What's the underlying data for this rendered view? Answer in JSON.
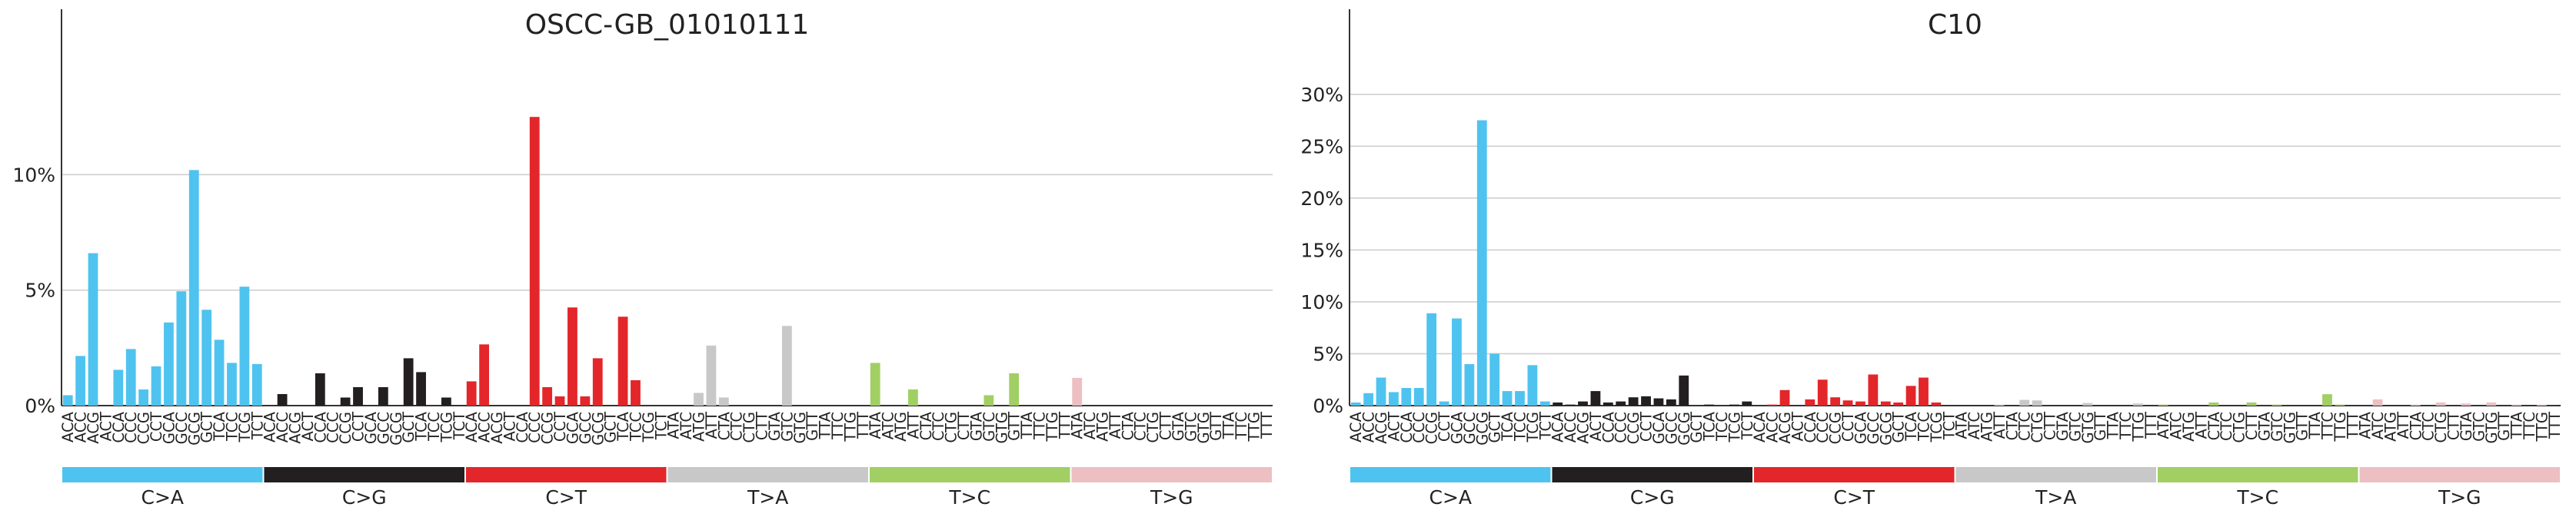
{
  "chart_data": [
    {
      "type": "bar",
      "title": "OSCC-GB_01010111",
      "ylim": [
        0,
        15.5
      ],
      "yticks": [
        0,
        5,
        10
      ],
      "ytick_labels": [
        "0%",
        "5%",
        "10%"
      ],
      "grid": true,
      "groups": [
        {
          "name": "C>A",
          "color": "#4fc3ef",
          "contexts": [
            "ACA",
            "ACC",
            "ACG",
            "ACT",
            "CCA",
            "CCC",
            "CCG",
            "CCT",
            "GCA",
            "GCC",
            "GCG",
            "GCT",
            "TCA",
            "TCC",
            "TCG",
            "TCT"
          ],
          "values": [
            0.45,
            2.15,
            6.6,
            0.0,
            1.55,
            2.45,
            0.7,
            1.7,
            3.6,
            4.95,
            10.2,
            4.15,
            2.85,
            1.85,
            5.15,
            1.8
          ]
        },
        {
          "name": "C>G",
          "color": "#231f20",
          "contexts": [
            "ACA",
            "ACC",
            "ACG",
            "ACT",
            "CCA",
            "CCC",
            "CCG",
            "CCT",
            "GCA",
            "GCC",
            "GCG",
            "GCT",
            "TCA",
            "TCC",
            "TCG",
            "TCT"
          ],
          "values": [
            0.0,
            0.5,
            0.0,
            0.0,
            1.4,
            0.0,
            0.35,
            0.8,
            0.0,
            0.8,
            0.0,
            2.05,
            1.45,
            0.0,
            0.35,
            0.0
          ]
        },
        {
          "name": "C>T",
          "color": "#e3262a",
          "contexts": [
            "ACA",
            "ACC",
            "ACG",
            "ACT",
            "CCA",
            "CCC",
            "CCG",
            "CCT",
            "GCA",
            "GCC",
            "GCG",
            "GCT",
            "TCA",
            "TCC",
            "TCG",
            "TCT"
          ],
          "values": [
            1.05,
            2.65,
            0.0,
            0.0,
            0.0,
            12.5,
            0.8,
            0.4,
            4.25,
            0.4,
            2.05,
            0.0,
            3.85,
            1.1,
            0.0,
            0.0
          ]
        },
        {
          "name": "T>A",
          "color": "#c8c8c8",
          "contexts": [
            "ATA",
            "ATC",
            "ATG",
            "ATT",
            "CTA",
            "CTC",
            "CTG",
            "CTT",
            "GTA",
            "GTC",
            "GTG",
            "GTT",
            "TTA",
            "TTC",
            "TTG",
            "TTT"
          ],
          "values": [
            0.0,
            0.0,
            0.55,
            2.6,
            0.35,
            0.0,
            0.0,
            0.0,
            0.0,
            3.45,
            0.0,
            0.0,
            0.0,
            0.0,
            0.0,
            0.0
          ]
        },
        {
          "name": "T>C",
          "color": "#a1cf64",
          "contexts": [
            "ATA",
            "ATC",
            "ATG",
            "ATT",
            "CTA",
            "CTC",
            "CTG",
            "CTT",
            "GTA",
            "GTC",
            "GTG",
            "GTT",
            "TTA",
            "TTC",
            "TTG",
            "TTT"
          ],
          "values": [
            1.85,
            0.0,
            0.0,
            0.7,
            0.0,
            0.0,
            0.0,
            0.0,
            0.0,
            0.45,
            0.0,
            1.4,
            0.0,
            0.0,
            0.0,
            0.0
          ]
        },
        {
          "name": "T>G",
          "color": "#edbfc2",
          "contexts": [
            "ATA",
            "ATC",
            "ATG",
            "ATT",
            "CTA",
            "CTC",
            "CTG",
            "CTT",
            "GTA",
            "GTC",
            "GTG",
            "GTT",
            "TTA",
            "TTC",
            "TTG",
            "TTT"
          ],
          "values": [
            1.2,
            0.0,
            0.0,
            0.0,
            0.0,
            0.0,
            0.0,
            0.0,
            0.0,
            0.0,
            0.0,
            0.0,
            0.0,
            0.0,
            0.0,
            0.0
          ]
        }
      ]
    },
    {
      "type": "bar",
      "title": "C10",
      "ylim": [
        0,
        34.5
      ],
      "yticks": [
        0,
        5,
        10,
        15,
        20,
        25,
        30
      ],
      "ytick_labels": [
        "0%",
        "5%",
        "10%",
        "15%",
        "20%",
        "25%",
        "30%"
      ],
      "grid": true,
      "groups": [
        {
          "name": "C>A",
          "color": "#4fc3ef",
          "contexts": [
            "ACA",
            "ACC",
            "ACG",
            "ACT",
            "CCA",
            "CCC",
            "CCG",
            "CCT",
            "GCA",
            "GCC",
            "GCG",
            "GCT",
            "TCA",
            "TCC",
            "TCG",
            "TCT"
          ],
          "values": [
            0.3,
            1.2,
            2.7,
            1.3,
            1.7,
            1.7,
            8.9,
            0.4,
            8.4,
            4.0,
            27.5,
            5.0,
            1.4,
            1.4,
            3.9,
            0.4
          ]
        },
        {
          "name": "C>G",
          "color": "#231f20",
          "contexts": [
            "ACA",
            "ACC",
            "ACG",
            "ACT",
            "CCA",
            "CCC",
            "CCG",
            "CCT",
            "GCA",
            "GCC",
            "GCG",
            "GCT",
            "TCA",
            "TCC",
            "TCG",
            "TCT"
          ],
          "values": [
            0.3,
            0.1,
            0.4,
            1.4,
            0.3,
            0.4,
            0.8,
            0.9,
            0.7,
            0.6,
            2.9,
            0.0,
            0.1,
            0.0,
            0.1,
            0.4
          ]
        },
        {
          "name": "C>T",
          "color": "#e3262a",
          "contexts": [
            "ACA",
            "ACC",
            "ACG",
            "ACT",
            "CCA",
            "CCC",
            "CCG",
            "CCT",
            "GCA",
            "GCC",
            "GCG",
            "GCT",
            "TCA",
            "TCC",
            "TCG",
            "TCT"
          ],
          "values": [
            0.0,
            0.1,
            1.5,
            0.0,
            0.6,
            2.5,
            0.8,
            0.5,
            0.4,
            3.0,
            0.4,
            0.3,
            1.9,
            2.7,
            0.3,
            0.0
          ]
        },
        {
          "name": "T>A",
          "color": "#c8c8c8",
          "contexts": [
            "ATA",
            "ATC",
            "ATG",
            "ATT",
            "CTA",
            "CTC",
            "CTG",
            "CTT",
            "GTA",
            "GTC",
            "GTG",
            "GTT",
            "TTA",
            "TTC",
            "TTG",
            "TTT"
          ],
          "values": [
            0.0,
            0.0,
            0.0,
            0.1,
            0.0,
            0.55,
            0.5,
            0.0,
            0.0,
            0.0,
            0.25,
            0.0,
            0.0,
            0.0,
            0.2,
            0.0
          ]
        },
        {
          "name": "T>C",
          "color": "#a1cf64",
          "contexts": [
            "ATA",
            "ATC",
            "ATG",
            "ATT",
            "CTA",
            "CTC",
            "CTG",
            "CTT",
            "GTA",
            "GTC",
            "GTG",
            "GTT",
            "TTA",
            "TTC",
            "TTG",
            "TTT"
          ],
          "values": [
            0.1,
            0.0,
            0.0,
            0.0,
            0.3,
            0.0,
            0.0,
            0.3,
            0.0,
            0.1,
            0.0,
            0.0,
            0.0,
            1.1,
            0.1,
            0.0
          ]
        },
        {
          "name": "T>G",
          "color": "#edbfc2",
          "contexts": [
            "ATA",
            "ATC",
            "ATG",
            "ATT",
            "CTA",
            "CTC",
            "CTG",
            "CTT",
            "GTA",
            "GTC",
            "GTG",
            "GTT",
            "TTA",
            "TTC",
            "TTG",
            "TTT"
          ],
          "values": [
            0.0,
            0.6,
            0.0,
            0.0,
            0.1,
            0.0,
            0.3,
            0.0,
            0.2,
            0.0,
            0.3,
            0.0,
            0.1,
            0.0,
            0.1,
            0.0
          ]
        }
      ]
    }
  ]
}
